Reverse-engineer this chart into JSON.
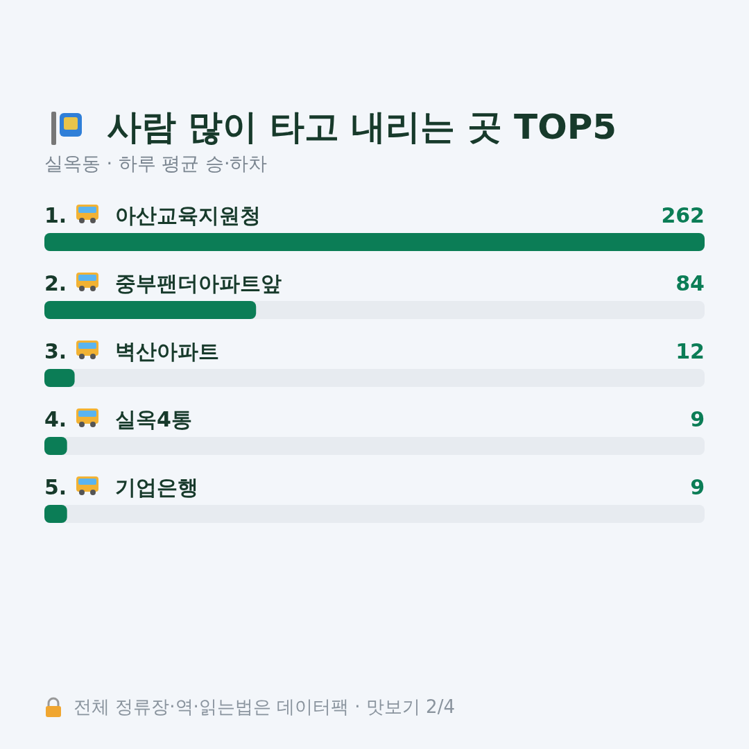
{
  "chart_data": {
    "type": "bar",
    "orientation": "horizontal",
    "title": "사람 많이 타고 내리는 곳 TOP5",
    "subtitle": "실옥동 · 하루 평균 승·하차",
    "categories": [
      "1. 아산교육지원청",
      "2. 중부팬더아파트앞",
      "3. 벽산아파트",
      "4. 실옥4통",
      "5. 기업은행"
    ],
    "values": [
      262,
      84,
      12,
      9,
      9
    ],
    "color": "#0b7d56",
    "data_labels": true,
    "annotations": [
      "전체 정류장·역·읽는법은 데이터팩 · 맛보기 2/4"
    ]
  }
}
